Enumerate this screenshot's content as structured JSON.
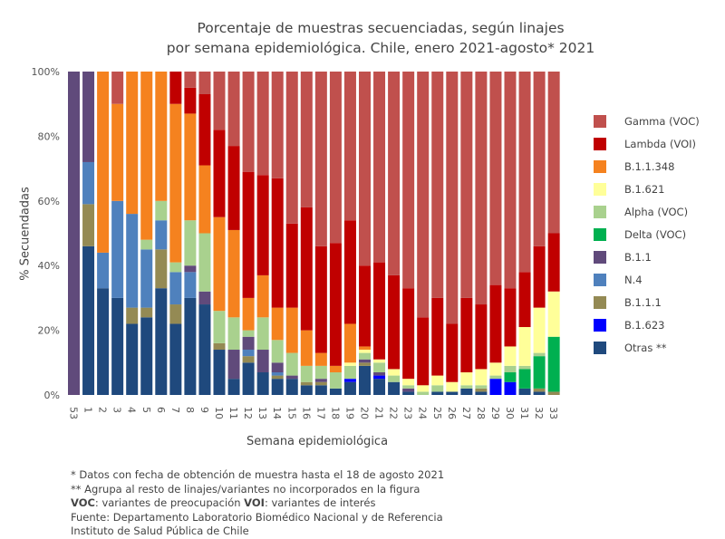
{
  "chart_data": {
    "type": "bar",
    "stacked": true,
    "title": "Porcentaje de muestras secuenciadas, según linajes",
    "subtitle": "por semana epidemiológica. Chile, enero 2021-agosto* 2021",
    "xlabel": "Semana epidemiológica",
    "ylabel": "% Secuendadas",
    "ylim": [
      0,
      100
    ],
    "yticks": [
      "0%",
      "20%",
      "40%",
      "60%",
      "80%",
      "100%"
    ],
    "grid": false,
    "legend_position": "right",
    "categories": [
      "53",
      "1",
      "2",
      "3",
      "4",
      "5",
      "6",
      "7",
      "8",
      "9",
      "10",
      "11",
      "12",
      "13",
      "14",
      "15",
      "16",
      "17",
      "18",
      "19",
      "20",
      "21",
      "22",
      "23",
      "24",
      "25",
      "26",
      "27",
      "28",
      "29",
      "30",
      "31",
      "32",
      "33"
    ],
    "series": [
      {
        "name": "Otras **",
        "color": "#1f497d",
        "values": [
          0,
          46,
          33,
          30,
          22,
          24,
          33,
          22,
          30,
          28,
          14,
          5,
          10,
          7,
          5,
          5,
          3,
          3,
          2,
          4,
          9,
          5,
          4,
          1,
          0,
          1,
          1,
          2,
          1,
          0,
          0,
          2,
          1,
          0
        ]
      },
      {
        "name": "B.1.623",
        "color": "#0000ff",
        "values": [
          0,
          0,
          0,
          0,
          0,
          0,
          0,
          0,
          0,
          0,
          0,
          0,
          0,
          0,
          0,
          0,
          0,
          0,
          0,
          1,
          0,
          1,
          0,
          0,
          0,
          0,
          0,
          0,
          0,
          5,
          4,
          0,
          0,
          0
        ]
      },
      {
        "name": "B.1.1.1",
        "color": "#948a54",
        "values": [
          0,
          13,
          0,
          0,
          5,
          3,
          12,
          6,
          0,
          0,
          2,
          0,
          2,
          0,
          1,
          0,
          1,
          1,
          0,
          0,
          1,
          0,
          0,
          0,
          0,
          0,
          0,
          0,
          1,
          0,
          0,
          0,
          1,
          1
        ]
      },
      {
        "name": "N.4",
        "color": "#4f81bd",
        "values": [
          0,
          13,
          11,
          30,
          29,
          18,
          9,
          10,
          8,
          0,
          0,
          0,
          2,
          0,
          1,
          0,
          0,
          0,
          0,
          0,
          0,
          0,
          0,
          0,
          0,
          0,
          0,
          0,
          0,
          0,
          0,
          0,
          0,
          0
        ]
      },
      {
        "name": "B.1.1",
        "color": "#604a7b",
        "values": [
          100,
          28,
          0,
          0,
          0,
          0,
          0,
          0,
          2,
          4,
          0,
          9,
          4,
          7,
          3,
          1,
          0,
          1,
          0,
          0,
          1,
          1,
          0,
          1,
          0,
          0,
          0,
          0,
          0,
          0,
          0,
          0,
          0,
          0
        ]
      },
      {
        "name": "Delta (VOC)",
        "color": "#00b050",
        "values": [
          0,
          0,
          0,
          0,
          0,
          0,
          0,
          0,
          0,
          0,
          0,
          0,
          0,
          0,
          0,
          0,
          0,
          0,
          0,
          0,
          0,
          0,
          0,
          0,
          0,
          0,
          0,
          0,
          0,
          0,
          3,
          6,
          10,
          17
        ]
      },
      {
        "name": "Alpha (VOC)",
        "color": "#a9d18e",
        "values": [
          0,
          0,
          0,
          0,
          0,
          3,
          6,
          3,
          14,
          18,
          10,
          10,
          2,
          10,
          7,
          7,
          5,
          4,
          5,
          4,
          2,
          3,
          2,
          1,
          1,
          2,
          0,
          1,
          1,
          1,
          2,
          1,
          1,
          0
        ]
      },
      {
        "name": "B.1.621",
        "color": "#ffff99",
        "values": [
          0,
          0,
          0,
          0,
          0,
          0,
          0,
          0,
          0,
          0,
          0,
          0,
          0,
          0,
          0,
          0,
          0,
          0,
          0,
          1,
          1,
          1,
          2,
          2,
          2,
          3,
          3,
          4,
          5,
          4,
          6,
          12,
          14,
          14
        ]
      },
      {
        "name": "B.1.1.348",
        "color": "#f5821f",
        "values": [
          0,
          0,
          56,
          30,
          44,
          52,
          40,
          49,
          33,
          21,
          29,
          27,
          10,
          13,
          10,
          14,
          11,
          4,
          2,
          12,
          1,
          0,
          0,
          0,
          0,
          0,
          0,
          0,
          0,
          0,
          0,
          0,
          0,
          0
        ]
      },
      {
        "name": "Lambda (VOI)",
        "color": "#c00000",
        "values": [
          0,
          0,
          0,
          0,
          0,
          0,
          0,
          10,
          8,
          22,
          27,
          26,
          39,
          31,
          40,
          26,
          38,
          33,
          38,
          32,
          25,
          30,
          29,
          28,
          21,
          24,
          18,
          23,
          20,
          24,
          18,
          17,
          19,
          18
        ]
      },
      {
        "name": "Gamma (VOC)",
        "color": "#c0504d",
        "values": [
          0,
          0,
          0,
          10,
          0,
          0,
          0,
          0,
          5,
          7,
          18,
          23,
          31,
          32,
          33,
          47,
          42,
          54,
          53,
          46,
          60,
          59,
          63,
          67,
          76,
          70,
          78,
          70,
          72,
          66,
          67,
          62,
          54,
          50
        ]
      }
    ],
    "legend_order": [
      "Gamma (VOC)",
      "Lambda (VOI)",
      "B.1.1.348",
      "B.1.621",
      "Alpha (VOC)",
      "Delta (VOC)",
      "B.1.1",
      "N.4",
      "B.1.1.1",
      "B.1.623",
      "Otras **"
    ]
  },
  "notes": {
    "line1": "* Datos con fecha de obtención de muestra hasta el 18 de agosto 2021",
    "line2": "** Agrupa al resto de linajes/variantes no incorporados en la figura",
    "line3_bold1": "VOC",
    "line3_text1": ": variantes de preocupación ",
    "line3_bold2": "VOI",
    "line3_text2": ": variantes de interés",
    "line4": "Fuente: Departamento Laboratorio Biomédico Nacional y de Referencia",
    "line5": "Instituto de Salud Pública de Chile"
  }
}
